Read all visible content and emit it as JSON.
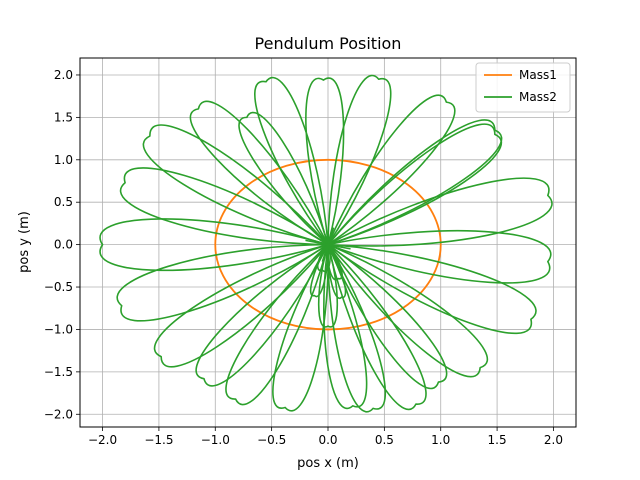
{
  "chart_data": {
    "type": "line",
    "title": "Pendulum Position",
    "xlabel": "pos x (m)",
    "ylabel": "pos y (m)",
    "xlim": [
      -2.2,
      2.2
    ],
    "ylim": [
      -2.15,
      2.2
    ],
    "xticks": [
      -2.0,
      -1.5,
      -1.0,
      -0.5,
      0.0,
      0.5,
      1.0,
      1.5,
      2.0
    ],
    "xtick_labels": [
      "−2.0",
      "−1.5",
      "−1.0",
      "−0.5",
      "0.0",
      "0.5",
      "1.0",
      "1.5",
      "2.0"
    ],
    "yticks": [
      -2.0,
      -1.5,
      -1.0,
      -0.5,
      0.0,
      0.5,
      1.0,
      1.5,
      2.0
    ],
    "ytick_labels": [
      "−2.0",
      "−1.5",
      "−1.0",
      "−0.5",
      "0.0",
      "0.5",
      "1.0",
      "1.5",
      "2.0"
    ],
    "grid": true,
    "legend_position": "top-right",
    "series": [
      {
        "name": "Mass1",
        "color": "#ff7f0e",
        "shape": "circle",
        "radius": 1.0,
        "center": [
          0.0,
          0.0
        ]
      },
      {
        "name": "Mass2",
        "color": "#2ca02c",
        "shape": "petal-loops",
        "hub": [
          0.0,
          0.0
        ],
        "loop_tips": [
          [
            -2.0,
            0.0
          ],
          [
            -1.8,
            0.73
          ],
          [
            -1.83,
            -0.72
          ],
          [
            -1.58,
            1.28
          ],
          [
            -1.48,
            -1.32
          ],
          [
            -1.15,
            1.6
          ],
          [
            -1.1,
            -1.58
          ],
          [
            -0.82,
            -1.82
          ],
          [
            -0.72,
            1.5
          ],
          [
            -0.55,
            1.92
          ],
          [
            -0.38,
            -1.92
          ],
          [
            -0.04,
            1.94
          ],
          [
            0.22,
            -1.9
          ],
          [
            0.45,
            1.95
          ],
          [
            0.4,
            -1.93
          ],
          [
            0.78,
            -1.88
          ],
          [
            1.05,
            1.68
          ],
          [
            0.98,
            -1.62
          ],
          [
            1.48,
            1.35
          ],
          [
            1.48,
            1.3
          ],
          [
            1.35,
            -1.45
          ],
          [
            1.8,
            -0.88
          ],
          [
            1.95,
            0.58
          ],
          [
            1.95,
            -0.2
          ]
        ],
        "inner_loops": [
          [
            0.0,
            -0.96
          ],
          [
            -0.12,
            -0.6
          ],
          [
            0.12,
            -0.62
          ],
          [
            0.09,
            -0.4
          ],
          [
            -0.05,
            -0.3
          ]
        ]
      }
    ]
  }
}
